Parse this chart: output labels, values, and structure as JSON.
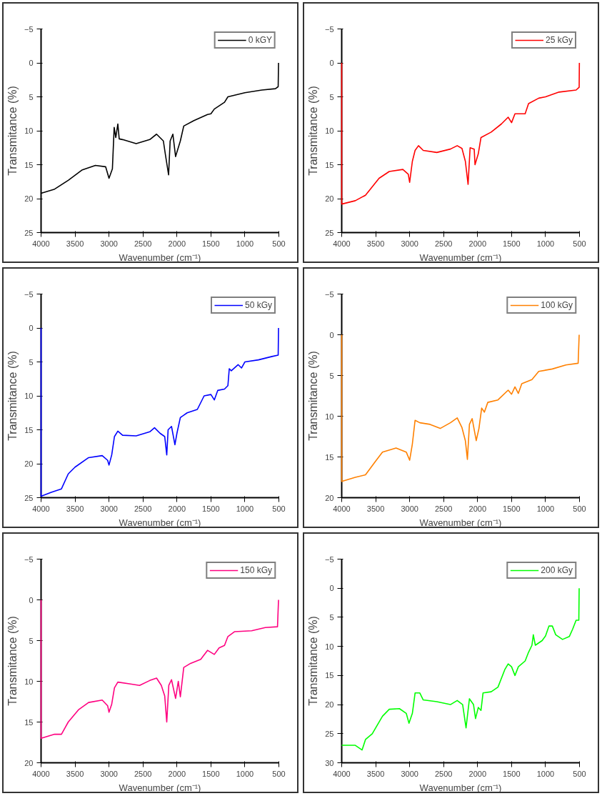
{
  "chart_data": [
    {
      "type": "line",
      "xlabel": "Wavenumber (cm⁻¹)",
      "ylabel": "Transmitance (%)",
      "xlim": [
        4000,
        500
      ],
      "ylim": [
        25,
        -5
      ],
      "xticks": [
        4000,
        3500,
        3000,
        2500,
        2000,
        1500,
        1000,
        500
      ],
      "yticks": [
        -5,
        0,
        5,
        10,
        15,
        20,
        25
      ],
      "grid": false,
      "legend": "top right",
      "series": [
        {
          "name": "0 kGY",
          "color": "#000000",
          "x": [
            4000,
            3800,
            3600,
            3400,
            3200,
            3050,
            3000,
            2950,
            2924,
            2900,
            2870,
            2850,
            2800,
            2600,
            2400,
            2300,
            2200,
            2170,
            2123,
            2100,
            2060,
            2020,
            1950,
            1900,
            1750,
            1550,
            1500,
            1450,
            1300,
            1250,
            1000,
            750,
            550,
            510,
            505
          ],
          "values": [
            19.2,
            18.6,
            17.3,
            15.8,
            15.1,
            15.3,
            17,
            15.6,
            9.5,
            11,
            9,
            11.2,
            11.3,
            11.9,
            11.3,
            10.5,
            11.5,
            13.5,
            16.5,
            11.5,
            10.5,
            13.8,
            11.5,
            9.3,
            8.5,
            7.6,
            7.5,
            6.8,
            5.8,
            5,
            4.4,
            4,
            3.8,
            3.5,
            0
          ]
        }
      ]
    },
    {
      "type": "line",
      "xlabel": "Wavenumber (cm⁻¹)",
      "ylabel": "Transmitance (%)",
      "xlim": [
        4000,
        500
      ],
      "ylim": [
        25,
        -5
      ],
      "xticks": [
        4000,
        3500,
        3000,
        2500,
        2000,
        1500,
        1000,
        500
      ],
      "yticks": [
        -5,
        0,
        5,
        10,
        15,
        20,
        25
      ],
      "grid": false,
      "legend": "top right",
      "series": [
        {
          "name": "25 kGy",
          "color": "#ff0000",
          "x": [
            4000,
            4000,
            3800,
            3650,
            3450,
            3300,
            3100,
            3020,
            3000,
            2960,
            2920,
            2870,
            2800,
            2600,
            2400,
            2300,
            2230,
            2180,
            2140,
            2110,
            2050,
            2038,
            1990,
            1950,
            1800,
            1650,
            1550,
            1500,
            1450,
            1300,
            1250,
            1100,
            1000,
            800,
            550,
            505,
            502
          ],
          "values": [
            0,
            20.8,
            20.3,
            19.5,
            17,
            16,
            15.7,
            16.4,
            17.6,
            14.5,
            12.9,
            12.2,
            12.9,
            13.2,
            12.7,
            12.2,
            12.6,
            14.5,
            17.9,
            12.5,
            12.7,
            15,
            13.4,
            11,
            10.2,
            9,
            8,
            8.8,
            7.5,
            7.5,
            6,
            5.2,
            5,
            4.3,
            4,
            3.6,
            0
          ]
        }
      ]
    },
    {
      "type": "line",
      "xlabel": "Wavenumber (cm⁻¹)",
      "ylabel": "Transmitance (%)",
      "xlim": [
        4000,
        500
      ],
      "ylim": [
        25,
        -5
      ],
      "xticks": [
        4000,
        3500,
        3000,
        2500,
        2000,
        1500,
        1000,
        500
      ],
      "yticks": [
        -5,
        0,
        5,
        10,
        15,
        20,
        25
      ],
      "grid": false,
      "legend": "top right",
      "series": [
        {
          "name": "50 kGy",
          "color": "#0000ff",
          "x": [
            4000,
            4000,
            3850,
            3700,
            3600,
            3500,
            3300,
            3100,
            3020,
            3000,
            2960,
            2920,
            2870,
            2800,
            2600,
            2400,
            2330,
            2250,
            2180,
            2150,
            2130,
            2080,
            2030,
            2000,
            1950,
            1850,
            1700,
            1600,
            1500,
            1450,
            1400,
            1300,
            1250,
            1230,
            1200,
            1100,
            1050,
            1000,
            800,
            600,
            510,
            505
          ],
          "values": [
            0,
            24.8,
            24.2,
            23.7,
            21.5,
            20.5,
            19.1,
            18.8,
            19.5,
            20.2,
            18.7,
            16,
            15.2,
            15.8,
            15.9,
            15.3,
            14.7,
            15.5,
            16,
            18.7,
            15,
            14.5,
            17.2,
            15.5,
            13.2,
            12.5,
            12,
            10,
            9.8,
            10.6,
            9.2,
            9,
            8.5,
            6,
            6.3,
            5.4,
            5.9,
            5,
            4.7,
            4.2,
            4,
            0
          ]
        }
      ]
    },
    {
      "type": "line",
      "xlabel": "Wavenumber (cm⁻¹)",
      "ylabel": "Transmitance (%)",
      "xlim": [
        4000,
        500
      ],
      "ylim": [
        20,
        -5
      ],
      "xticks": [
        4000,
        3500,
        3000,
        2500,
        2000,
        1500,
        1000,
        500
      ],
      "yticks": [
        -5,
        0,
        5,
        10,
        15,
        20
      ],
      "grid": false,
      "legend": "top right",
      "series": [
        {
          "name": "100 kGy",
          "color": "#ff8000",
          "x": [
            4000,
            4000,
            3800,
            3650,
            3500,
            3400,
            3200,
            3050,
            3000,
            2960,
            2920,
            2850,
            2700,
            2550,
            2400,
            2300,
            2230,
            2180,
            2150,
            2120,
            2080,
            2020,
            1980,
            1940,
            1900,
            1850,
            1700,
            1550,
            1500,
            1450,
            1400,
            1350,
            1200,
            1100,
            900,
            700,
            520,
            505
          ],
          "values": [
            0,
            18,
            17.5,
            17.2,
            15.5,
            14.4,
            13.9,
            14.4,
            15.4,
            13.4,
            10.5,
            10.8,
            11,
            11.5,
            10.8,
            10.2,
            11.4,
            13,
            15.3,
            11,
            10.3,
            13,
            11.5,
            9,
            9.5,
            8.3,
            8,
            6.8,
            7.3,
            6.4,
            7.2,
            6,
            5.5,
            4.5,
            4.2,
            3.7,
            3.5,
            0
          ]
        }
      ]
    },
    {
      "type": "line",
      "xlabel": "Wavenumber (cm⁻¹)",
      "ylabel": "Transmitance (%)",
      "xlim": [
        4000,
        500
      ],
      "ylim": [
        20,
        -5
      ],
      "xticks": [
        4000,
        3500,
        3000,
        2500,
        2000,
        1500,
        1000,
        500
      ],
      "yticks": [
        -5,
        0,
        5,
        10,
        15,
        20
      ],
      "grid": false,
      "legend": "top right",
      "series": [
        {
          "name": "150 kGy",
          "color": "#ff0080",
          "x": [
            4000,
            4000,
            3800,
            3700,
            3600,
            3450,
            3300,
            3100,
            3020,
            3000,
            2960,
            2920,
            2870,
            2700,
            2550,
            2400,
            2300,
            2230,
            2180,
            2150,
            2120,
            2080,
            2020,
            1980,
            1950,
            1900,
            1800,
            1650,
            1550,
            1450,
            1380,
            1300,
            1250,
            1150,
            900,
            700,
            520,
            505
          ],
          "values": [
            0,
            17,
            16.5,
            16.5,
            15,
            13.5,
            12.6,
            12.3,
            13,
            13.8,
            12.8,
            10.8,
            10.1,
            10.3,
            10.5,
            9.9,
            9.6,
            10.5,
            11.8,
            15,
            10.5,
            9.8,
            12.1,
            10,
            11.9,
            8.3,
            7.8,
            7.3,
            6.2,
            6.7,
            5.9,
            5.6,
            4.5,
            3.9,
            3.8,
            3.4,
            3.3,
            0
          ]
        }
      ]
    },
    {
      "type": "line",
      "xlabel": "Wavenumber (cm⁻¹)",
      "ylabel": "Transmitance (%)",
      "xlim": [
        4000,
        500
      ],
      "ylim": [
        30,
        -5
      ],
      "xticks": [
        4000,
        3500,
        3000,
        2500,
        2000,
        1500,
        1000,
        500
      ],
      "yticks": [
        -5,
        0,
        5,
        10,
        15,
        20,
        25,
        30
      ],
      "grid": false,
      "legend": "top right",
      "series": [
        {
          "name": "200 kGy",
          "color": "#00ff00",
          "x": [
            4000,
            3800,
            3700,
            3650,
            3550,
            3400,
            3300,
            3150,
            3050,
            3010,
            2960,
            2920,
            2850,
            2800,
            2600,
            2400,
            2300,
            2220,
            2170,
            2120,
            2060,
            2030,
            1990,
            1950,
            1920,
            1800,
            1700,
            1600,
            1550,
            1500,
            1450,
            1400,
            1300,
            1250,
            1200,
            1180,
            1150,
            1050,
            1000,
            950,
            900,
            850,
            750,
            650,
            600,
            550,
            510,
            505
          ],
          "values": [
            27,
            27,
            27.8,
            26,
            25,
            22,
            20.8,
            20.7,
            21.5,
            23.2,
            21.5,
            18,
            18,
            19.2,
            19.5,
            20,
            19.3,
            20,
            24,
            19,
            20,
            22.4,
            20.5,
            21,
            18,
            17.8,
            17,
            14,
            13,
            13.5,
            15,
            13.5,
            12.5,
            11,
            9.8,
            8,
            9.8,
            9,
            8.2,
            6.5,
            6.5,
            8,
            8.8,
            8.3,
            7,
            5.5,
            5.5,
            0
          ]
        }
      ]
    }
  ]
}
